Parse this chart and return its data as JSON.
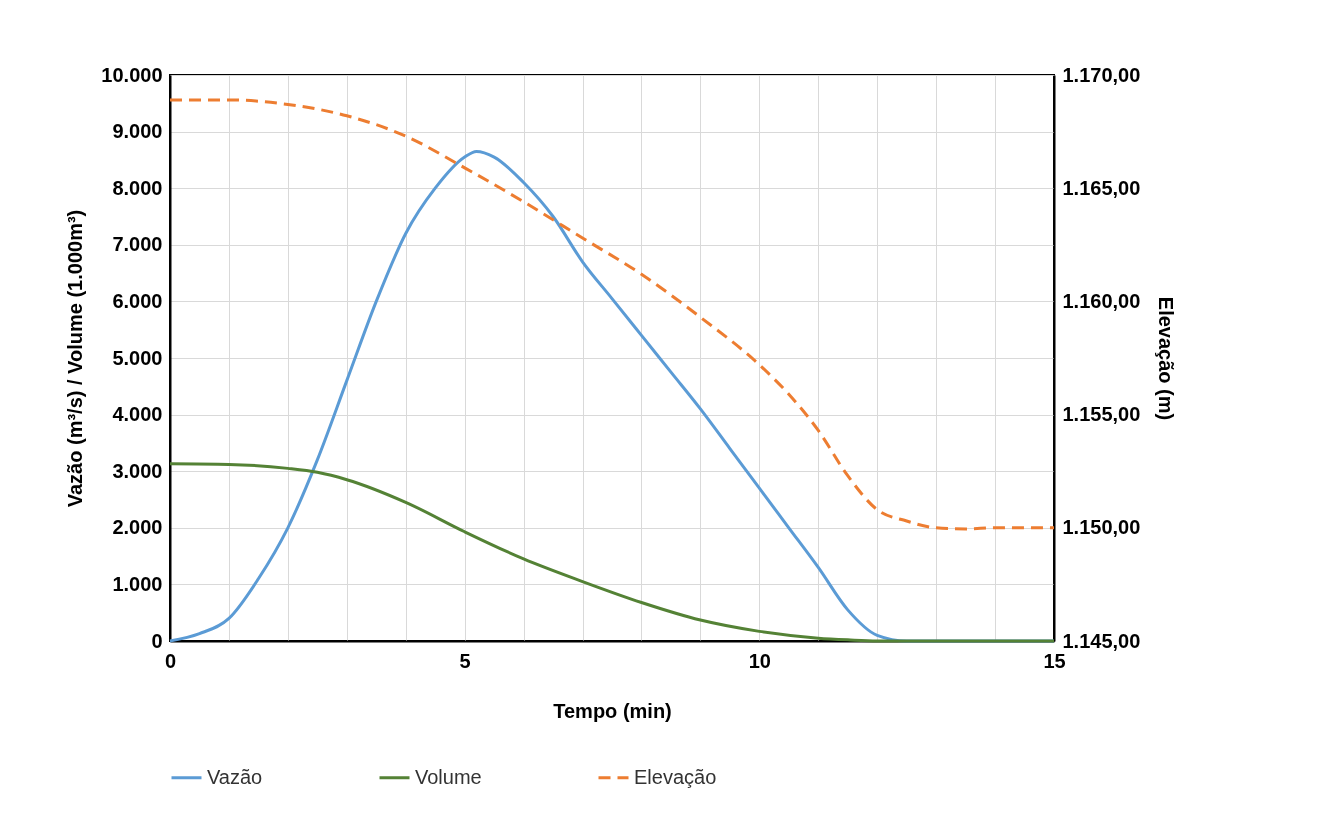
{
  "chart_data": {
    "type": "line",
    "xlabel": "Tempo (min)",
    "ylabel": "Vazão (m³/s) / Volume (1.000m³)",
    "y2label": "Elevação (m)",
    "xlim": [
      0,
      15
    ],
    "xticks": [
      0,
      {
        "value": 1,
        "label": null
      },
      {
        "value": 2,
        "label": null
      },
      {
        "value": 3,
        "label": null
      },
      {
        "value": 4,
        "label": null
      },
      5,
      {
        "value": 6,
        "label": null
      },
      {
        "value": 7,
        "label": null
      },
      {
        "value": 8,
        "label": null
      },
      {
        "value": 9,
        "label": null
      },
      10,
      {
        "value": 11,
        "label": null
      },
      {
        "value": 12,
        "label": null
      },
      {
        "value": 13,
        "label": null
      },
      {
        "value": 14,
        "label": null
      },
      15
    ],
    "ylim": [
      0,
      10000
    ],
    "yticks": [
      0,
      {
        "value": 1000,
        "label": "1.000"
      },
      {
        "value": 2000,
        "label": "2.000"
      },
      {
        "value": 3000,
        "label": "3.000"
      },
      {
        "value": 4000,
        "label": "4.000"
      },
      {
        "value": 5000,
        "label": "5.000"
      },
      {
        "value": 6000,
        "label": "6.000"
      },
      {
        "value": 7000,
        "label": "7.000"
      },
      {
        "value": 8000,
        "label": "8.000"
      },
      {
        "value": 9000,
        "label": "9.000"
      },
      {
        "value": 10000,
        "label": "10.000"
      }
    ],
    "y2lim": [
      1145,
      1170
    ],
    "y2ticks": [
      {
        "value": 1145,
        "label": "1.145,00"
      },
      {
        "value": 1150,
        "label": "1.150,00"
      },
      {
        "value": 1155,
        "label": "1.155,00"
      },
      {
        "value": 1160,
        "label": "1.160,00"
      },
      {
        "value": 1165,
        "label": "1.165,00"
      },
      {
        "value": 1170,
        "label": "1.170,00"
      }
    ],
    "grid": true,
    "legend": "bottom",
    "series": [
      {
        "name": "Vazão",
        "color": "#5b9bd5",
        "x": [
          0,
          0.5,
          1,
          1.5,
          2,
          2.5,
          3,
          3.5,
          4,
          4.5,
          5,
          5.2,
          5.5,
          6,
          6.5,
          7,
          7.5,
          8,
          8.5,
          9,
          9.5,
          10,
          10.5,
          11,
          11.5,
          12,
          12.5,
          13,
          15
        ],
        "values": [
          0,
          130,
          400,
          1100,
          2000,
          3200,
          4600,
          6000,
          7200,
          8000,
          8550,
          8650,
          8550,
          8100,
          7500,
          6700,
          6050,
          5400,
          4750,
          4100,
          3400,
          2700,
          2000,
          1300,
          550,
          100,
          0,
          0,
          0
        ]
      },
      {
        "name": "Volume",
        "color": "#548235",
        "x": [
          0,
          1,
          2,
          2.5,
          3,
          4,
          5,
          6,
          7,
          8,
          9,
          10,
          11,
          11.5,
          12,
          15
        ],
        "values": [
          3130,
          3120,
          3050,
          2980,
          2850,
          2450,
          1930,
          1450,
          1050,
          680,
          370,
          170,
          50,
          20,
          0,
          0
        ]
      },
      {
        "name": "Elevação",
        "color": "#ed7d31",
        "axis": "y2",
        "line_style": "dashed",
        "x": [
          0,
          1,
          2,
          3,
          4,
          5,
          6,
          7,
          8,
          9,
          10,
          10.5,
          11,
          11.5,
          12,
          12.5,
          13,
          13.5,
          14,
          15
        ],
        "values": [
          1168.9,
          1168.9,
          1168.7,
          1168.2,
          1167.3,
          1165.9,
          1164.4,
          1162.8,
          1161.2,
          1159.3,
          1157.2,
          1155.9,
          1154.3,
          1152.3,
          1150.8,
          1150.3,
          1150.0,
          1149.95,
          1150.0,
          1150.0
        ]
      }
    ]
  }
}
